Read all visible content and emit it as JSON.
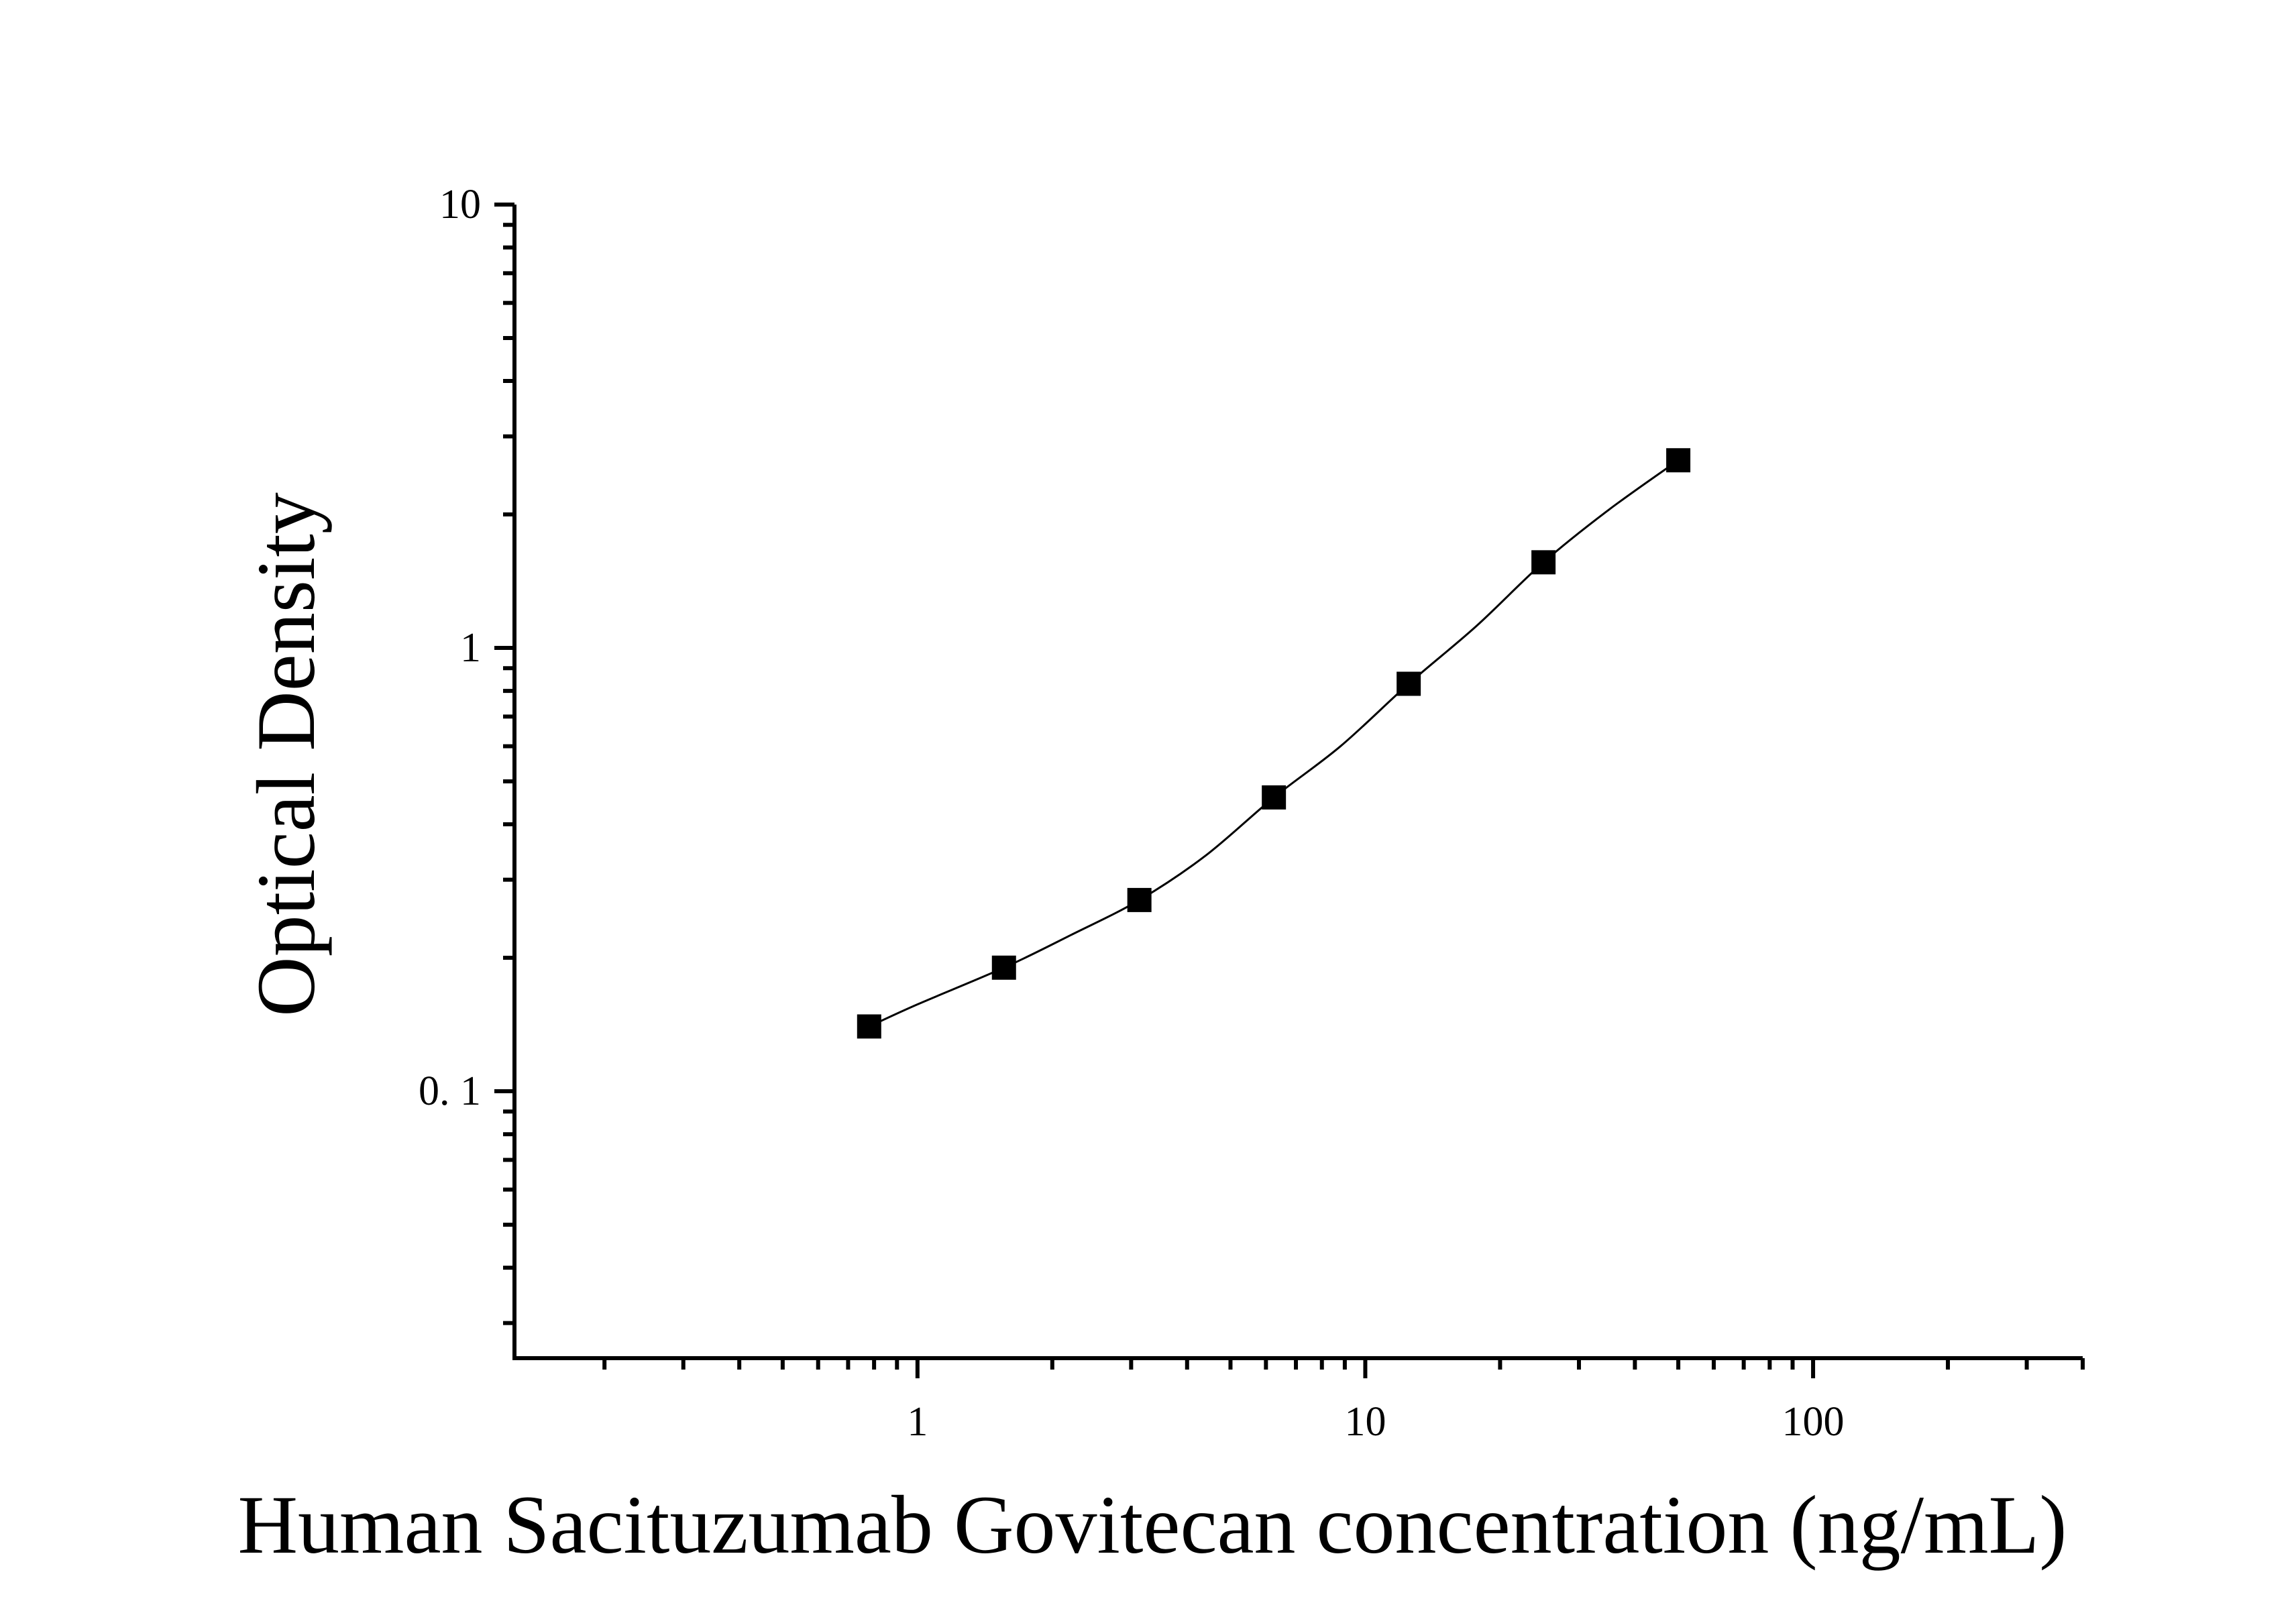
{
  "chart_data": {
    "type": "scatter",
    "title": "",
    "xlabel": "Human Sacituzumab Govitecan concentration (ng/mL)",
    "ylabel": "Optical Density",
    "x_scale": "log",
    "y_scale": "log",
    "xlim": [
      0.1259,
      400
    ],
    "ylim": [
      0.025,
      10
    ],
    "x_ticks": [
      {
        "value": 1,
        "label": "1"
      },
      {
        "value": 10,
        "label": "10"
      },
      {
        "value": 100,
        "label": "100"
      }
    ],
    "y_ticks": [
      {
        "value": 0.1,
        "label": "0. 1"
      },
      {
        "value": 1,
        "label": "1"
      },
      {
        "value": 10,
        "label": "10"
      }
    ],
    "grid": false,
    "legend": "none",
    "series": [
      {
        "marker": "square",
        "color": "#000000",
        "x": [
          0.78,
          1.56,
          3.13,
          6.25,
          12.5,
          25,
          50
        ],
        "y": [
          0.14,
          0.19,
          0.27,
          0.46,
          0.83,
          1.56,
          2.65
        ]
      }
    ],
    "fit_curve": {
      "color": "#000000",
      "x": [
        0.78,
        1.0,
        1.56,
        2.2,
        3.13,
        4.4,
        6.25,
        8.8,
        12.5,
        17.7,
        25,
        35,
        50
      ],
      "y": [
        0.14,
        0.157,
        0.19,
        0.225,
        0.27,
        0.34,
        0.46,
        0.6,
        0.83,
        1.12,
        1.56,
        2.05,
        2.65
      ]
    }
  }
}
